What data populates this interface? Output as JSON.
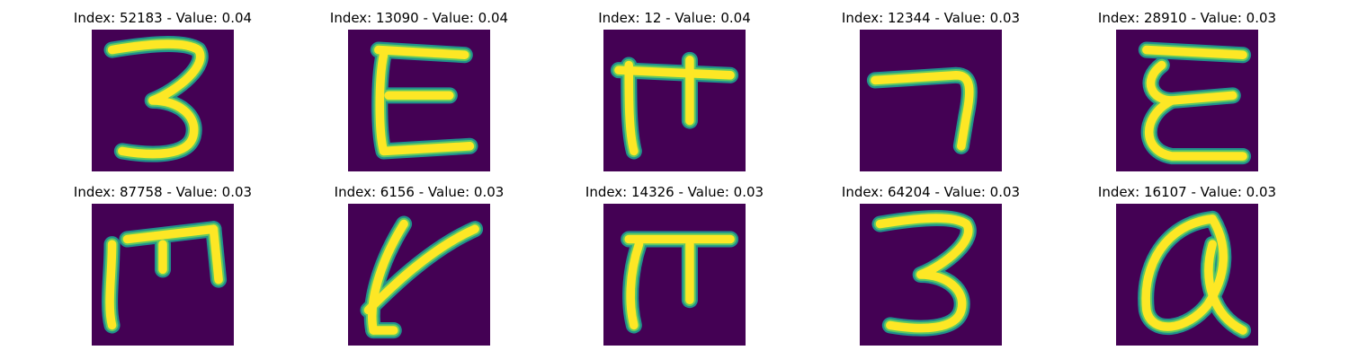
{
  "figure": {
    "panels": [
      {
        "title": "Index: 52183 - Value: 0.04",
        "glyph": "handwritten-3"
      },
      {
        "title": "Index: 13090 - Value: 0.04",
        "glyph": "handwritten-E"
      },
      {
        "title": "Index: 12 - Value: 0.04",
        "glyph": "handwritten-pi-like"
      },
      {
        "title": "Index: 12344 - Value: 0.03",
        "glyph": "handwritten-7"
      },
      {
        "title": "Index: 28910 - Value: 0.03",
        "glyph": "handwritten-epsilon"
      },
      {
        "title": "Index: 87758 - Value: 0.03",
        "glyph": "handwritten-m-box"
      },
      {
        "title": "Index: 6156 - Value: 0.03",
        "glyph": "handwritten-y-like"
      },
      {
        "title": "Index: 14326 - Value: 0.03",
        "glyph": "handwritten-pi"
      },
      {
        "title": "Index: 64204 - Value: 0.03",
        "glyph": "handwritten-3"
      },
      {
        "title": "Index: 16107 - Value: 0.03",
        "glyph": "handwritten-a"
      }
    ],
    "colors": {
      "background": "#440154",
      "stroke_edge": "#21918c",
      "stroke_mid": "#5ec962",
      "stroke_core": "#fde725"
    }
  }
}
